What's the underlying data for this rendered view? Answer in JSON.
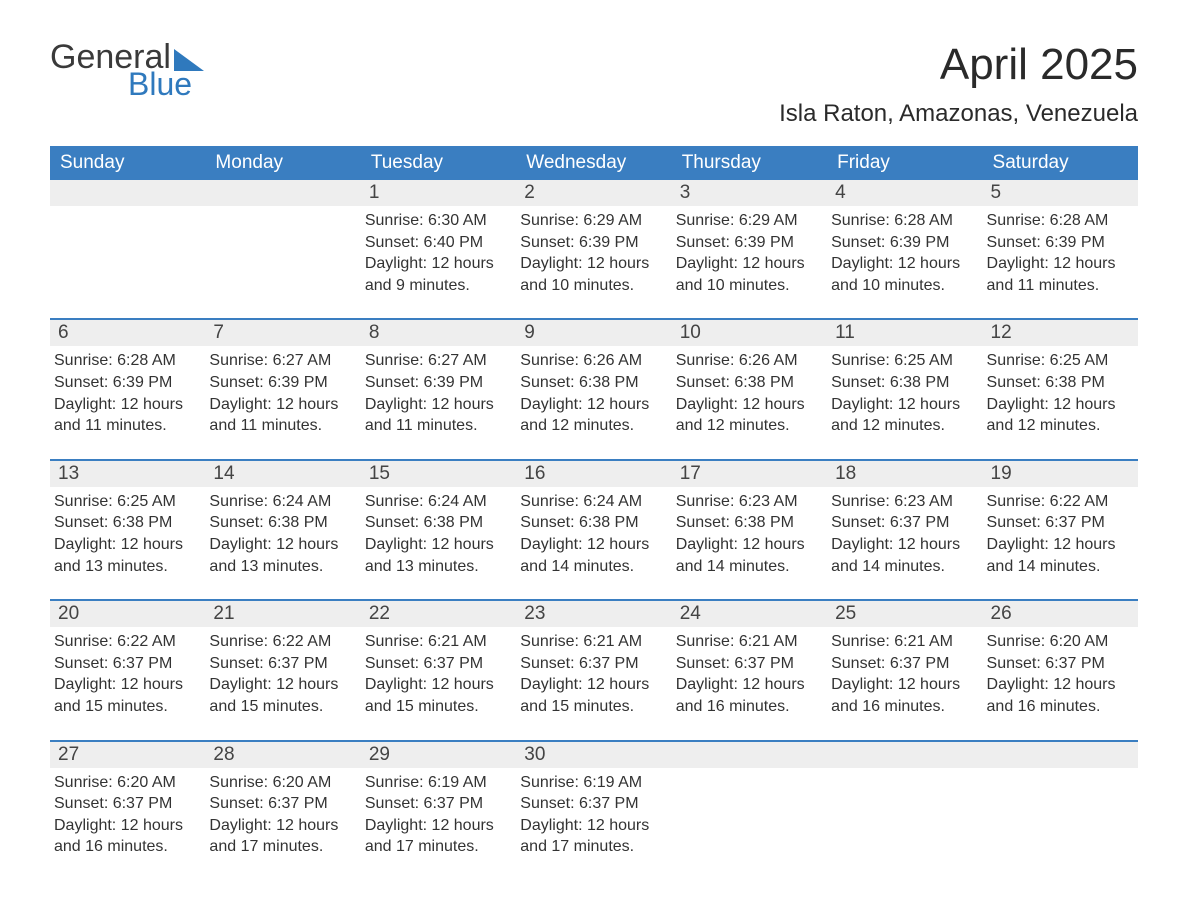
{
  "brand": {
    "general": "General",
    "blue": "Blue"
  },
  "title": "April 2025",
  "subtitle": "Isla Raton, Amazonas, Venezuela",
  "colors": {
    "header_bg": "#3a7ec1",
    "header_text": "#ffffff",
    "daynum_bg": "#eeeeee",
    "week_border": "#3a7ec1",
    "logo_blue": "#2f79bd",
    "body_text": "#333333",
    "background": "#ffffff"
  },
  "layout": {
    "columns": 7,
    "rows": 5,
    "first_day_column_index": 2,
    "days_in_month": 30
  },
  "daysOfWeek": [
    "Sunday",
    "Monday",
    "Tuesday",
    "Wednesday",
    "Thursday",
    "Friday",
    "Saturday"
  ],
  "labels": {
    "sunrise_prefix": "Sunrise: ",
    "sunset_prefix": "Sunset: ",
    "daylight_prefix": "Daylight: ",
    "hours_word": "hours",
    "minutes_word": "minutes"
  },
  "days": [
    {
      "n": 1,
      "sunrise": "6:30 AM",
      "sunset": "6:40 PM",
      "daylight": "12 hours and 9 minutes."
    },
    {
      "n": 2,
      "sunrise": "6:29 AM",
      "sunset": "6:39 PM",
      "daylight": "12 hours and 10 minutes."
    },
    {
      "n": 3,
      "sunrise": "6:29 AM",
      "sunset": "6:39 PM",
      "daylight": "12 hours and 10 minutes."
    },
    {
      "n": 4,
      "sunrise": "6:28 AM",
      "sunset": "6:39 PM",
      "daylight": "12 hours and 10 minutes."
    },
    {
      "n": 5,
      "sunrise": "6:28 AM",
      "sunset": "6:39 PM",
      "daylight": "12 hours and 11 minutes."
    },
    {
      "n": 6,
      "sunrise": "6:28 AM",
      "sunset": "6:39 PM",
      "daylight": "12 hours and 11 minutes."
    },
    {
      "n": 7,
      "sunrise": "6:27 AM",
      "sunset": "6:39 PM",
      "daylight": "12 hours and 11 minutes."
    },
    {
      "n": 8,
      "sunrise": "6:27 AM",
      "sunset": "6:39 PM",
      "daylight": "12 hours and 11 minutes."
    },
    {
      "n": 9,
      "sunrise": "6:26 AM",
      "sunset": "6:38 PM",
      "daylight": "12 hours and 12 minutes."
    },
    {
      "n": 10,
      "sunrise": "6:26 AM",
      "sunset": "6:38 PM",
      "daylight": "12 hours and 12 minutes."
    },
    {
      "n": 11,
      "sunrise": "6:25 AM",
      "sunset": "6:38 PM",
      "daylight": "12 hours and 12 minutes."
    },
    {
      "n": 12,
      "sunrise": "6:25 AM",
      "sunset": "6:38 PM",
      "daylight": "12 hours and 12 minutes."
    },
    {
      "n": 13,
      "sunrise": "6:25 AM",
      "sunset": "6:38 PM",
      "daylight": "12 hours and 13 minutes."
    },
    {
      "n": 14,
      "sunrise": "6:24 AM",
      "sunset": "6:38 PM",
      "daylight": "12 hours and 13 minutes."
    },
    {
      "n": 15,
      "sunrise": "6:24 AM",
      "sunset": "6:38 PM",
      "daylight": "12 hours and 13 minutes."
    },
    {
      "n": 16,
      "sunrise": "6:24 AM",
      "sunset": "6:38 PM",
      "daylight": "12 hours and 14 minutes."
    },
    {
      "n": 17,
      "sunrise": "6:23 AM",
      "sunset": "6:38 PM",
      "daylight": "12 hours and 14 minutes."
    },
    {
      "n": 18,
      "sunrise": "6:23 AM",
      "sunset": "6:37 PM",
      "daylight": "12 hours and 14 minutes."
    },
    {
      "n": 19,
      "sunrise": "6:22 AM",
      "sunset": "6:37 PM",
      "daylight": "12 hours and 14 minutes."
    },
    {
      "n": 20,
      "sunrise": "6:22 AM",
      "sunset": "6:37 PM",
      "daylight": "12 hours and 15 minutes."
    },
    {
      "n": 21,
      "sunrise": "6:22 AM",
      "sunset": "6:37 PM",
      "daylight": "12 hours and 15 minutes."
    },
    {
      "n": 22,
      "sunrise": "6:21 AM",
      "sunset": "6:37 PM",
      "daylight": "12 hours and 15 minutes."
    },
    {
      "n": 23,
      "sunrise": "6:21 AM",
      "sunset": "6:37 PM",
      "daylight": "12 hours and 15 minutes."
    },
    {
      "n": 24,
      "sunrise": "6:21 AM",
      "sunset": "6:37 PM",
      "daylight": "12 hours and 16 minutes."
    },
    {
      "n": 25,
      "sunrise": "6:21 AM",
      "sunset": "6:37 PM",
      "daylight": "12 hours and 16 minutes."
    },
    {
      "n": 26,
      "sunrise": "6:20 AM",
      "sunset": "6:37 PM",
      "daylight": "12 hours and 16 minutes."
    },
    {
      "n": 27,
      "sunrise": "6:20 AM",
      "sunset": "6:37 PM",
      "daylight": "12 hours and 16 minutes."
    },
    {
      "n": 28,
      "sunrise": "6:20 AM",
      "sunset": "6:37 PM",
      "daylight": "12 hours and 17 minutes."
    },
    {
      "n": 29,
      "sunrise": "6:19 AM",
      "sunset": "6:37 PM",
      "daylight": "12 hours and 17 minutes."
    },
    {
      "n": 30,
      "sunrise": "6:19 AM",
      "sunset": "6:37 PM",
      "daylight": "12 hours and 17 minutes."
    }
  ]
}
